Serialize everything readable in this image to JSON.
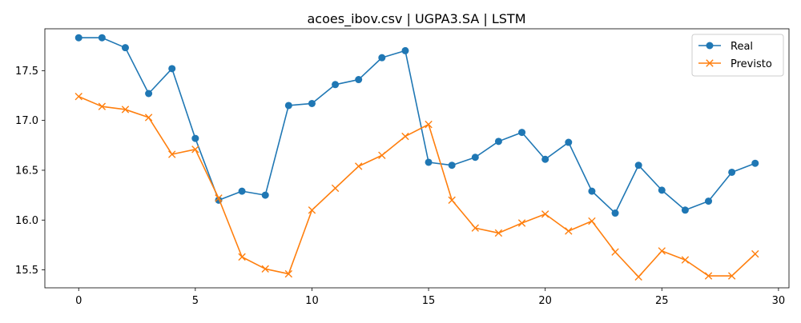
{
  "chart_data": {
    "type": "line",
    "title": "acoes_ibov.csv | UGPA3.SA | LSTM",
    "xlabel": "",
    "ylabel": "",
    "xlim": [
      -1.45,
      30.45
    ],
    "ylim": [
      15.32,
      17.92
    ],
    "xticks": [
      0,
      5,
      10,
      15,
      20,
      25,
      30
    ],
    "yticks": [
      15.5,
      16.0,
      16.5,
      17.0,
      17.5
    ],
    "ytick_labels": [
      "15.5",
      "16.0",
      "16.5",
      "17.0",
      "17.5"
    ],
    "grid": false,
    "legend_position": "top-right",
    "x": [
      0,
      1,
      2,
      3,
      4,
      5,
      6,
      7,
      8,
      9,
      10,
      11,
      12,
      13,
      14,
      15,
      16,
      17,
      18,
      19,
      20,
      21,
      22,
      23,
      24,
      25,
      26,
      27,
      28,
      29
    ],
    "series": [
      {
        "name": "Real",
        "color": "#1f77b4",
        "marker": "circle",
        "values": [
          17.83,
          17.83,
          17.73,
          17.27,
          17.52,
          16.82,
          16.2,
          16.29,
          16.25,
          17.15,
          17.17,
          17.36,
          17.41,
          17.63,
          17.7,
          16.58,
          16.55,
          16.63,
          16.79,
          16.88,
          16.61,
          16.78,
          16.29,
          16.07,
          16.55,
          16.3,
          16.1,
          16.19,
          16.48,
          16.57
        ]
      },
      {
        "name": "Previsto",
        "color": "#ff7f0e",
        "marker": "x",
        "values": [
          17.24,
          17.14,
          17.11,
          17.03,
          16.66,
          16.71,
          16.22,
          15.63,
          15.51,
          15.46,
          16.1,
          16.32,
          16.54,
          16.65,
          16.84,
          16.96,
          16.2,
          15.92,
          15.87,
          15.97,
          16.06,
          15.89,
          15.99,
          15.68,
          15.43,
          15.69,
          15.6,
          15.44,
          15.44,
          15.66
        ]
      }
    ]
  }
}
